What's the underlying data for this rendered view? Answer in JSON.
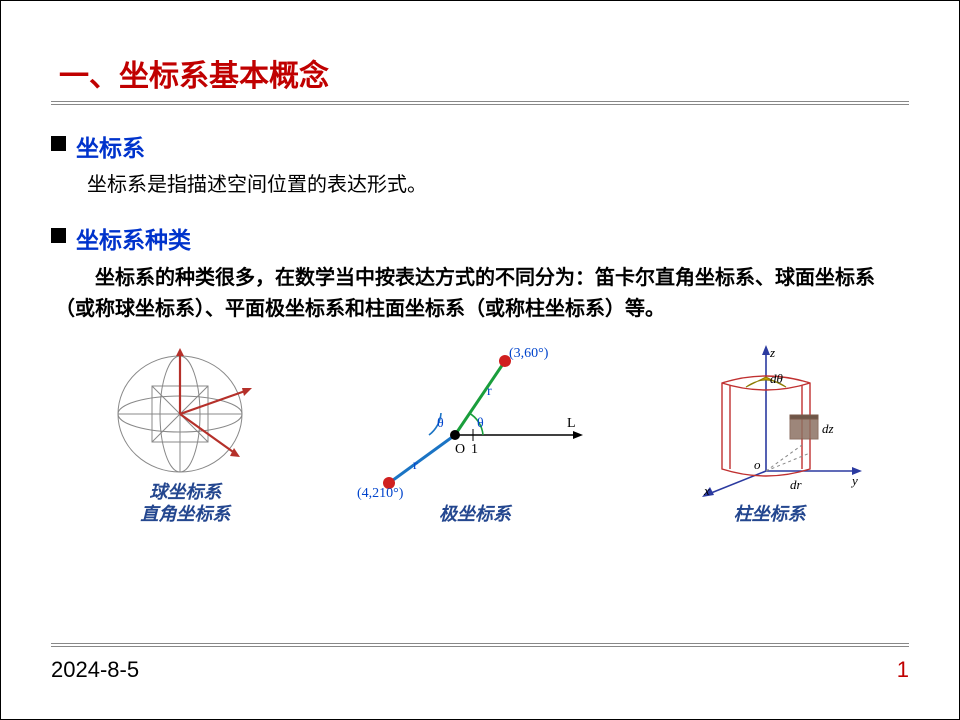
{
  "colors": {
    "title": "#c00000",
    "bullet_label": "#0033cc",
    "body_text": "#000000",
    "caption": "#24478f",
    "date": "#000000",
    "page_num": "#c00000",
    "sphere_axis": "#b5302a",
    "polar_text": "#0044cc",
    "polar_r1": "#1a9e3c",
    "polar_r2": "#1b74c4",
    "polar_dot": "#d02020",
    "cyl_axis": "#2b3aa0",
    "cyl_body": "#c03030",
    "cyl_y": "#c9a400",
    "cyl_box": "#7a5a4a"
  },
  "title": "一、坐标系基本概念",
  "section1": {
    "label": "坐标系",
    "text": "坐标系是指描述空间位置的表达形式。"
  },
  "section2": {
    "label": "坐标系种类",
    "text": "　　坐标系的种类很多，在数学当中按表达方式的不同分为：笛卡尔直角坐标系、球面坐标系（或称球坐标系）、平面极坐标系和柱面坐标系（或称柱坐标系）等。"
  },
  "figs": {
    "sphere": {
      "cap1": "球坐标系",
      "cap2": "直角坐标系"
    },
    "polar": {
      "cap": "极坐标系",
      "pt1": "(3,60°)",
      "pt2": "(4,210°)",
      "r": "r",
      "theta": "θ",
      "O": "O",
      "one": "1",
      "L": "L"
    },
    "cyl": {
      "cap": "柱坐标系",
      "z": "z",
      "y": "y",
      "x": "x",
      "o": "o",
      "dz": "dz",
      "dr": "dr",
      "dth": "dθ"
    }
  },
  "footer": {
    "date": "2024-8-5",
    "page": "1"
  }
}
